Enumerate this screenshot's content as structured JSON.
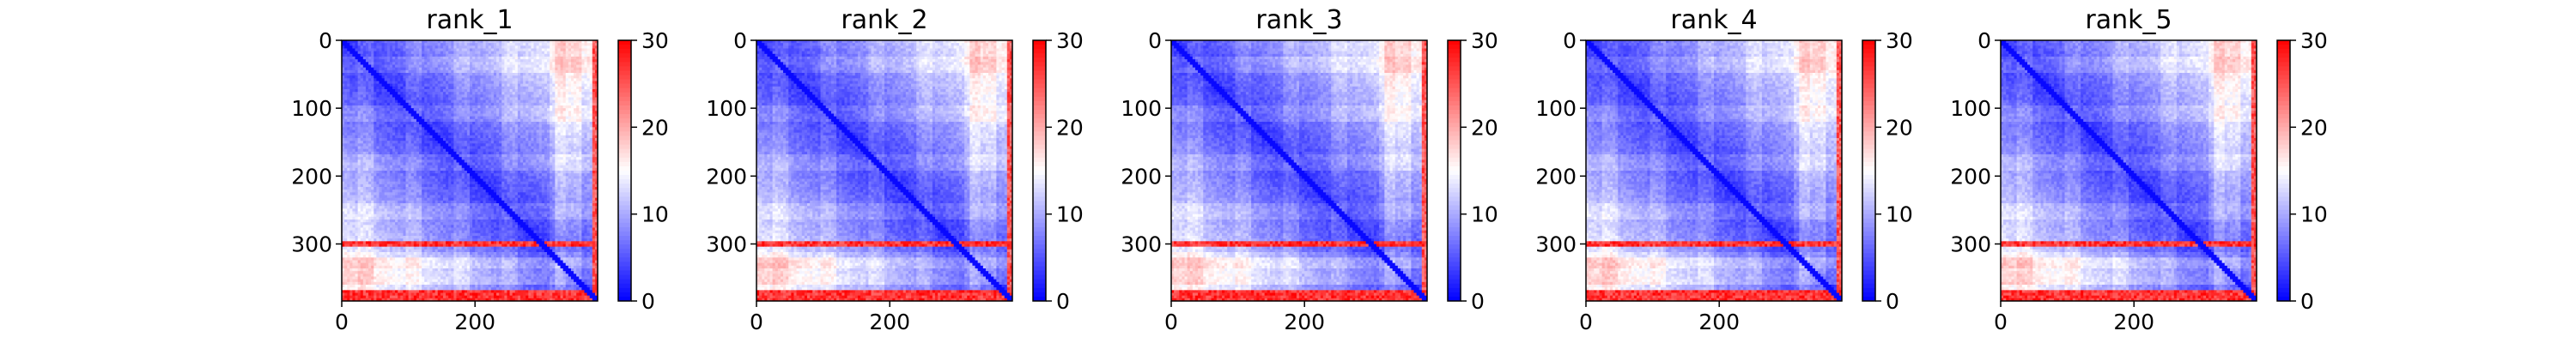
{
  "chart_data": [
    {
      "type": "heatmap",
      "title": "rank_1",
      "x_ticks": [
        0,
        200
      ],
      "y_ticks": [
        0,
        100,
        200,
        300
      ],
      "matrix_size": 384,
      "colorbar": {
        "ticks": [
          0,
          10,
          20,
          30
        ],
        "range": [
          0,
          30
        ],
        "colormap": [
          "#0000ff",
          "#ffffff",
          "#ff0000"
        ]
      },
      "high_rows": [
        [
          295,
          303
        ],
        [
          370,
          384
        ]
      ],
      "high_cols": [
        [
          375,
          384
        ]
      ],
      "grid": false
    },
    {
      "type": "heatmap",
      "title": "rank_2",
      "x_ticks": [
        0,
        200
      ],
      "y_ticks": [
        0,
        100,
        200,
        300
      ],
      "matrix_size": 384,
      "colorbar": {
        "ticks": [
          0,
          10,
          20,
          30
        ],
        "range": [
          0,
          30
        ],
        "colormap": [
          "#0000ff",
          "#ffffff",
          "#ff0000"
        ]
      },
      "high_rows": [
        [
          295,
          303
        ],
        [
          370,
          384
        ]
      ],
      "high_cols": [
        [
          375,
          384
        ]
      ],
      "grid": false
    },
    {
      "type": "heatmap",
      "title": "rank_3",
      "x_ticks": [
        0,
        200
      ],
      "y_ticks": [
        0,
        100,
        200,
        300
      ],
      "matrix_size": 384,
      "colorbar": {
        "ticks": [
          0,
          10,
          20,
          30
        ],
        "range": [
          0,
          30
        ],
        "colormap": [
          "#0000ff",
          "#ffffff",
          "#ff0000"
        ]
      },
      "high_rows": [
        [
          295,
          303
        ],
        [
          370,
          384
        ]
      ],
      "high_cols": [
        [
          375,
          384
        ]
      ],
      "grid": false
    },
    {
      "type": "heatmap",
      "title": "rank_4",
      "x_ticks": [
        0,
        200
      ],
      "y_ticks": [
        0,
        100,
        200,
        300
      ],
      "matrix_size": 384,
      "colorbar": {
        "ticks": [
          0,
          10,
          20,
          30
        ],
        "range": [
          0,
          30
        ],
        "colormap": [
          "#0000ff",
          "#ffffff",
          "#ff0000"
        ]
      },
      "high_rows": [
        [
          295,
          303
        ],
        [
          370,
          384
        ]
      ],
      "high_cols": [
        [
          375,
          384
        ]
      ],
      "grid": false
    },
    {
      "type": "heatmap",
      "title": "rank_5",
      "x_ticks": [
        0,
        200
      ],
      "y_ticks": [
        0,
        100,
        200,
        300
      ],
      "matrix_size": 384,
      "colorbar": {
        "ticks": [
          0,
          10,
          20,
          30
        ],
        "range": [
          0,
          30
        ],
        "colormap": [
          "#0000ff",
          "#ffffff",
          "#ff0000"
        ]
      },
      "high_rows": [
        [
          295,
          303
        ],
        [
          370,
          384
        ]
      ],
      "high_cols": [
        [
          375,
          384
        ]
      ],
      "grid": false
    }
  ]
}
